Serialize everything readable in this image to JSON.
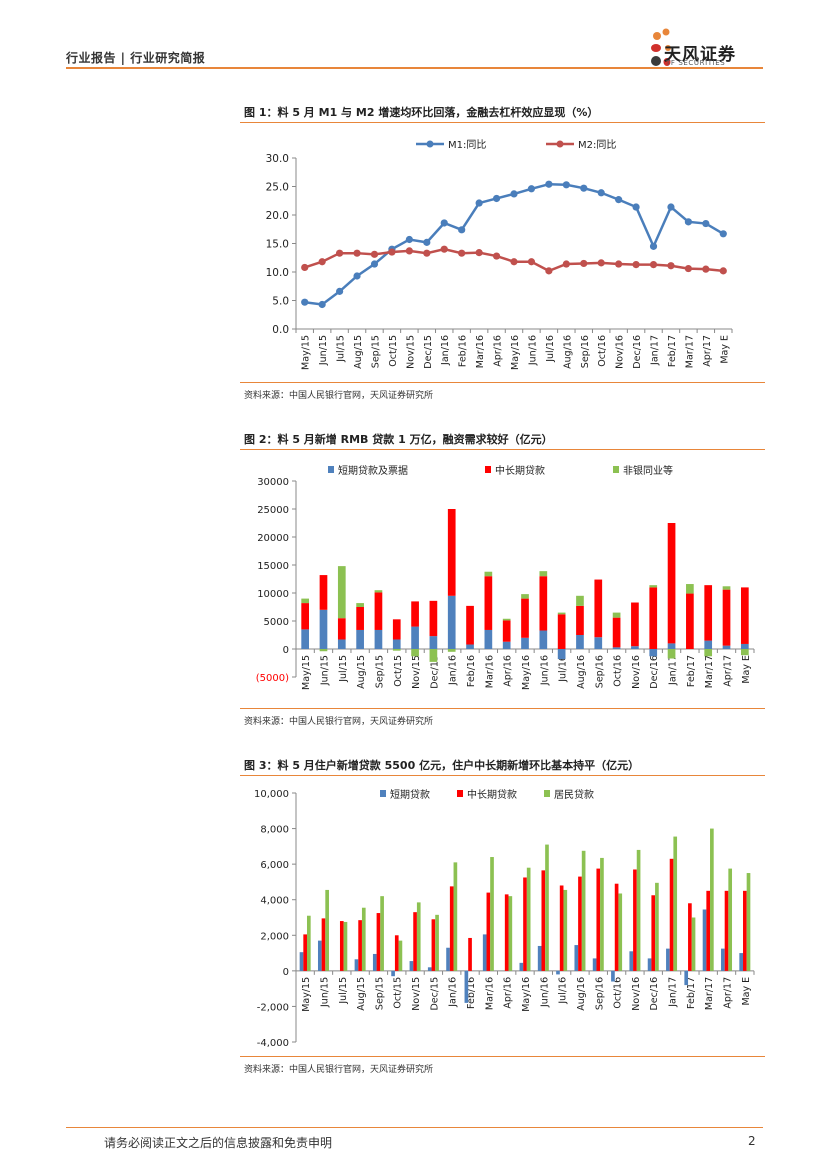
{
  "header": {
    "left_text": "行业报告 | 行业研究简报",
    "logo_cn": "天风证券",
    "logo_en": "TF SECURITIES",
    "logo_colors": [
      "#e8863a",
      "#d0302c",
      "#3a3a3a"
    ]
  },
  "footer": {
    "disclaimer": "请务必阅读正文之后的信息披露和免责申明",
    "page_number": "2"
  },
  "colors": {
    "accent": "#e8863a",
    "m1": "#4a7ebb",
    "m2": "#c0504d",
    "blue": "#4f81bd",
    "red": "#ff0000",
    "green": "#8cc152"
  },
  "chart_data": [
    {
      "type": "line",
      "title": "图 1：料 5 月 M1 与 M2 增速均环比回落，金融去杠杆效应显现（%）",
      "source": "资料来源：中国人民银行官网，天风证券研究所",
      "categories": [
        "May/15",
        "Jun/15",
        "Jul/15",
        "Aug/15",
        "Sep/15",
        "Oct/15",
        "Nov/15",
        "Dec/15",
        "Jan/16",
        "Feb/16",
        "Mar/16",
        "Apr/16",
        "May/16",
        "Jun/16",
        "Jul/16",
        "Aug/16",
        "Sep/16",
        "Oct/16",
        "Nov/16",
        "Dec/16",
        "Jan/17",
        "Feb/17",
        "Mar/17",
        "Apr/17",
        "May E"
      ],
      "series": [
        {
          "name": "M1:同比",
          "values": [
            4.7,
            4.3,
            6.6,
            9.3,
            11.4,
            14.0,
            15.7,
            15.2,
            18.6,
            17.4,
            22.1,
            22.9,
            23.7,
            24.6,
            25.4,
            25.3,
            24.7,
            23.9,
            22.7,
            21.4,
            14.5,
            21.4,
            18.8,
            18.5,
            16.7
          ]
        },
        {
          "name": "M2:同比",
          "values": [
            10.8,
            11.8,
            13.3,
            13.3,
            13.1,
            13.5,
            13.7,
            13.3,
            14.0,
            13.3,
            13.4,
            12.8,
            11.8,
            11.8,
            10.2,
            11.4,
            11.5,
            11.6,
            11.4,
            11.3,
            11.3,
            11.1,
            10.6,
            10.5,
            10.2
          ]
        }
      ],
      "ylim": [
        0,
        30
      ],
      "yticks": [
        "0.0",
        "5.0",
        "10.0",
        "15.0",
        "20.0",
        "25.0",
        "30.0"
      ],
      "legend": "top-center",
      "grid": false
    },
    {
      "type": "bar",
      "stacked": true,
      "title": "图 2：料 5 月新增 RMB 贷款 1 万亿，融资需求较好（亿元）",
      "source": "资料来源：中国人民银行官网，天风证券研究所",
      "categories": [
        "May/15",
        "Jun/15",
        "Jul/15",
        "Aug/15",
        "Sep/15",
        "Oct/15",
        "Nov/15",
        "Dec/15",
        "Jan/16",
        "Feb/16",
        "Mar/16",
        "Apr/16",
        "May/16",
        "Jun/16",
        "Jul/16",
        "Aug/16",
        "Sep/16",
        "Oct/16",
        "Nov/16",
        "Dec/16",
        "Jan/17",
        "Feb/17",
        "Mar/17",
        "Apr/17",
        "May E"
      ],
      "series": [
        {
          "name": "短期贷款及票据",
          "values": [
            3500,
            7000,
            1700,
            3400,
            3400,
            1700,
            4000,
            2300,
            9500,
            800,
            3400,
            1300,
            2000,
            3300,
            -1800,
            2500,
            2100,
            300,
            500,
            -1300,
            1000,
            0,
            1500,
            600,
            900
          ]
        },
        {
          "name": "中长期贷款",
          "values": [
            4700,
            6200,
            3800,
            4100,
            6700,
            3600,
            4500,
            6300,
            15500,
            6900,
            9600,
            3800,
            7000,
            9700,
            6200,
            5200,
            10300,
            5300,
            7800,
            11000,
            21500,
            9900,
            9900,
            10000,
            10100
          ]
        },
        {
          "name": "非银同业等",
          "values": [
            800,
            -400,
            9300,
            700,
            400,
            -300,
            -1300,
            -2300,
            -500,
            0,
            800,
            300,
            800,
            900,
            300,
            1800,
            0,
            900,
            0,
            400,
            -1700,
            1700,
            -1300,
            600,
            -1100
          ]
        }
      ],
      "ylim": [
        -5000,
        30000
      ],
      "yticks": [
        "(5000)",
        "0",
        "5000",
        "10000",
        "15000",
        "20000",
        "25000",
        "30000"
      ],
      "legend": "top-center",
      "grid": false
    },
    {
      "type": "bar",
      "title": "图 3：料 5 月住户新增贷款 5500 亿元，住户中长期新增环比基本持平（亿元）",
      "source": "资料来源：中国人民银行官网，天风证券研究所",
      "categories": [
        "May/15",
        "Jun/15",
        "Jul/15",
        "Aug/15",
        "Sep/15",
        "Oct/15",
        "Nov/15",
        "Dec/15",
        "Jan/16",
        "Feb/16",
        "Mar/16",
        "Apr/16",
        "May/16",
        "Jun/16",
        "Jul/16",
        "Aug/16",
        "Sep/16",
        "Oct/16",
        "Nov/16",
        "Dec/16",
        "Jan/17",
        "Feb/17",
        "Mar/17",
        "Apr/17",
        "May E"
      ],
      "series": [
        {
          "name": "短期贷款",
          "values": [
            1050,
            1700,
            0,
            650,
            950,
            -300,
            550,
            200,
            1300,
            -1800,
            2050,
            0,
            450,
            1400,
            -200,
            1450,
            700,
            -600,
            1100,
            700,
            1250,
            -800,
            3450,
            1250,
            1000
          ]
        },
        {
          "name": "中长期贷款",
          "values": [
            2050,
            2950,
            2800,
            2850,
            3250,
            2000,
            3300,
            2900,
            4750,
            1850,
            4400,
            4300,
            5250,
            5650,
            4800,
            5300,
            5750,
            4900,
            5700,
            4250,
            6300,
            3800,
            4500,
            4500,
            4500
          ]
        },
        {
          "name": "居民贷款",
          "values": [
            3100,
            4550,
            2750,
            3550,
            4200,
            1700,
            3850,
            3150,
            6100,
            0,
            6400,
            4200,
            5800,
            7100,
            4550,
            6750,
            6350,
            4350,
            6800,
            4950,
            7550,
            3000,
            8000,
            5750,
            5500
          ]
        }
      ],
      "ylim": [
        -4000,
        10000
      ],
      "yticks": [
        "-4,000",
        "-2,000",
        "0",
        "2,000",
        "4,000",
        "6,000",
        "8,000",
        "10,000"
      ],
      "legend": "top-center",
      "grid": false
    }
  ]
}
